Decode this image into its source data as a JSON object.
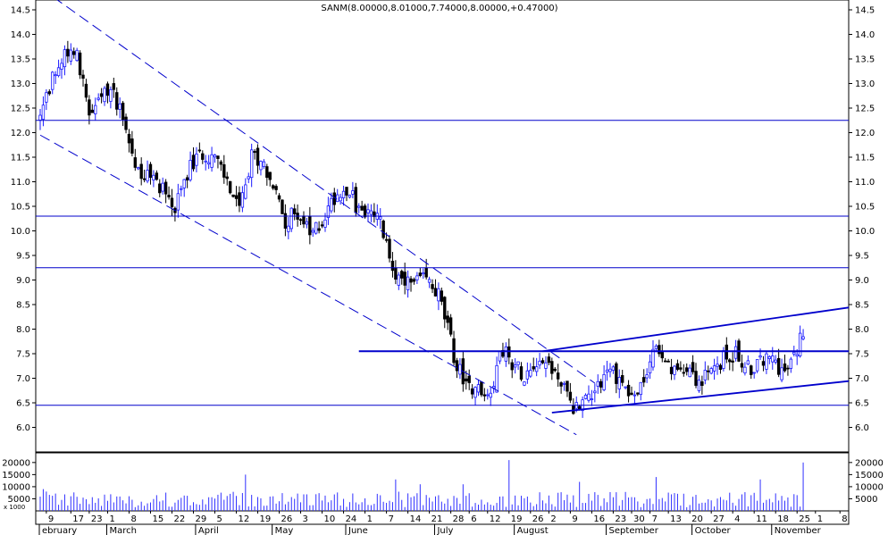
{
  "chart_data": {
    "type": "candlestick",
    "title": "SANM(8.00000,8.01000,7.74000,8.00000,+0.47000)",
    "price_axis": {
      "range": [
        5.5,
        14.7
      ],
      "ticks": [
        "6.0",
        "6.5",
        "7.0",
        "7.5",
        "8.0",
        "8.5",
        "9.0",
        "9.5",
        "10.0",
        "10.5",
        "11.0",
        "11.5",
        "12.0",
        "12.5",
        "13.0",
        "13.5",
        "14.0",
        "14.5"
      ]
    },
    "volume_axis": {
      "range": [
        0,
        24000
      ],
      "ticks": [
        "5000",
        "10000",
        "15000",
        "20000"
      ],
      "multiplier_label": "x 1000"
    },
    "day_labels": [
      {
        "day": 2,
        "text": "9"
      },
      {
        "day": 10,
        "text": "17"
      },
      {
        "day": 16,
        "text": "23"
      },
      {
        "day": 22,
        "text": "1"
      },
      {
        "day": 29,
        "text": "8"
      },
      {
        "day": 36,
        "text": "15"
      },
      {
        "day": 43,
        "text": "22"
      },
      {
        "day": 50,
        "text": "29"
      },
      {
        "day": 57,
        "text": "5"
      },
      {
        "day": 64,
        "text": "12"
      },
      {
        "day": 71,
        "text": "19"
      },
      {
        "day": 78,
        "text": "26"
      },
      {
        "day": 85,
        "text": "3"
      },
      {
        "day": 92,
        "text": "10"
      },
      {
        "day": 99,
        "text": "24"
      },
      {
        "day": 106,
        "text": "1"
      },
      {
        "day": 113,
        "text": "7"
      },
      {
        "day": 120,
        "text": "14"
      },
      {
        "day": 127,
        "text": "21"
      },
      {
        "day": 134,
        "text": "28"
      },
      {
        "day": 140,
        "text": "6"
      },
      {
        "day": 146,
        "text": "12"
      },
      {
        "day": 153,
        "text": "19"
      },
      {
        "day": 160,
        "text": "26"
      },
      {
        "day": 166,
        "text": "2"
      },
      {
        "day": 173,
        "text": "9"
      },
      {
        "day": 180,
        "text": "16"
      },
      {
        "day": 187,
        "text": "23"
      },
      {
        "day": 193,
        "text": "30"
      },
      {
        "day": 199,
        "text": "7"
      },
      {
        "day": 205,
        "text": "13"
      },
      {
        "day": 212,
        "text": "20"
      },
      {
        "day": 219,
        "text": "27"
      },
      {
        "day": 226,
        "text": "4"
      },
      {
        "day": 233,
        "text": "11"
      },
      {
        "day": 240,
        "text": "18"
      },
      {
        "day": 247,
        "text": "25"
      },
      {
        "day": 253,
        "text": "1"
      },
      {
        "day": 261,
        "text": "8"
      }
    ],
    "month_labels": [
      {
        "day": 0,
        "text": "ebruary"
      },
      {
        "day": 22,
        "text": "March"
      },
      {
        "day": 51,
        "text": "April"
      },
      {
        "day": 76,
        "text": "May"
      },
      {
        "day": 100,
        "text": "June"
      },
      {
        "day": 129,
        "text": "July"
      },
      {
        "day": 155,
        "text": "August"
      },
      {
        "day": 185,
        "text": "September"
      },
      {
        "day": 213,
        "text": "October"
      },
      {
        "day": 239,
        "text": "November"
      }
    ],
    "horizontal_lines": [
      12.25,
      10.3,
      9.25,
      6.45
    ],
    "support_line": {
      "from_day": 104,
      "to_day": 265,
      "price": 7.55
    },
    "trend_lines": [
      {
        "style": "dashed",
        "from": [
          0,
          14.95
        ],
        "to": [
          181,
          6.9
        ]
      },
      {
        "style": "dashed",
        "from": [
          0,
          11.95
        ],
        "to": [
          175,
          5.85
        ]
      },
      {
        "style": "solid",
        "from": [
          164,
          7.55
        ],
        "to": [
          265,
          8.45
        ]
      },
      {
        "style": "solid",
        "from": [
          167,
          6.3
        ],
        "to": [
          265,
          6.95
        ]
      }
    ],
    "anchors": [
      {
        "day": 0,
        "price": 12.3
      },
      {
        "day": 4,
        "price": 13.1
      },
      {
        "day": 8,
        "price": 13.6
      },
      {
        "day": 12,
        "price": 13.7
      },
      {
        "day": 16,
        "price": 12.3
      },
      {
        "day": 19,
        "price": 12.6
      },
      {
        "day": 23,
        "price": 12.9
      },
      {
        "day": 27,
        "price": 12.4
      },
      {
        "day": 31,
        "price": 11.3
      },
      {
        "day": 35,
        "price": 11.1
      },
      {
        "day": 40,
        "price": 10.9
      },
      {
        "day": 44,
        "price": 10.4
      },
      {
        "day": 48,
        "price": 11.2
      },
      {
        "day": 53,
        "price": 11.6
      },
      {
        "day": 57,
        "price": 11.5
      },
      {
        "day": 61,
        "price": 11.0
      },
      {
        "day": 65,
        "price": 10.4
      },
      {
        "day": 69,
        "price": 11.5
      },
      {
        "day": 72,
        "price": 11.5
      },
      {
        "day": 76,
        "price": 10.9
      },
      {
        "day": 80,
        "price": 10.2
      },
      {
        "day": 84,
        "price": 10.4
      },
      {
        "day": 88,
        "price": 9.9
      },
      {
        "day": 92,
        "price": 10.2
      },
      {
        "day": 96,
        "price": 10.7
      },
      {
        "day": 100,
        "price": 10.9
      },
      {
        "day": 104,
        "price": 10.4
      },
      {
        "day": 108,
        "price": 10.3
      },
      {
        "day": 111,
        "price": 10.2
      },
      {
        "day": 114,
        "price": 9.4
      },
      {
        "day": 118,
        "price": 8.9
      },
      {
        "day": 122,
        "price": 8.9
      },
      {
        "day": 126,
        "price": 9.0
      },
      {
        "day": 130,
        "price": 8.7
      },
      {
        "day": 133,
        "price": 8.0
      },
      {
        "day": 136,
        "price": 7.2
      },
      {
        "day": 140,
        "price": 6.9
      },
      {
        "day": 144,
        "price": 6.7
      },
      {
        "day": 148,
        "price": 6.8
      },
      {
        "day": 150,
        "price": 7.7
      },
      {
        "day": 154,
        "price": 7.3
      },
      {
        "day": 158,
        "price": 7.1
      },
      {
        "day": 162,
        "price": 7.4
      },
      {
        "day": 166,
        "price": 7.3
      },
      {
        "day": 170,
        "price": 6.9
      },
      {
        "day": 174,
        "price": 6.4
      },
      {
        "day": 178,
        "price": 6.6
      },
      {
        "day": 182,
        "price": 6.9
      },
      {
        "day": 186,
        "price": 7.2
      },
      {
        "day": 190,
        "price": 6.9
      },
      {
        "day": 194,
        "price": 6.6
      },
      {
        "day": 197,
        "price": 6.9
      },
      {
        "day": 200,
        "price": 7.6
      },
      {
        "day": 203,
        "price": 7.3
      },
      {
        "day": 207,
        "price": 7.1
      },
      {
        "day": 211,
        "price": 7.3
      },
      {
        "day": 215,
        "price": 6.9
      },
      {
        "day": 219,
        "price": 7.1
      },
      {
        "day": 223,
        "price": 7.4
      },
      {
        "day": 227,
        "price": 7.5
      },
      {
        "day": 231,
        "price": 7.2
      },
      {
        "day": 235,
        "price": 7.3
      },
      {
        "day": 239,
        "price": 7.4
      },
      {
        "day": 243,
        "price": 7.1
      },
      {
        "day": 246,
        "price": 7.4
      },
      {
        "day": 249,
        "price": 8.0
      }
    ],
    "volume_spikes": [
      {
        "day": 67,
        "value": 15000
      },
      {
        "day": 153,
        "value": 21000
      },
      {
        "day": 249,
        "value": 20000
      },
      {
        "day": 138,
        "value": 11000
      },
      {
        "day": 176,
        "value": 12000
      },
      {
        "day": 201,
        "value": 14000
      },
      {
        "day": 116,
        "value": 13000
      },
      {
        "day": 124,
        "value": 11000
      },
      {
        "day": 235,
        "value": 13000
      },
      {
        "day": 1,
        "value": 9000
      },
      {
        "day": 2,
        "value": 8000
      }
    ],
    "colors": {
      "up_candle": "#1a1aff",
      "down_candle": "#000000",
      "level_line": "#0000cc",
      "trend_line": "#0000cc",
      "grid_frame": "#000000",
      "volume_bar": "#3030ff"
    }
  }
}
